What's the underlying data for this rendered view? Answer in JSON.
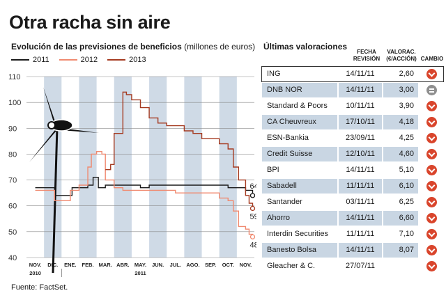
{
  "main_title": "Otra racha sin aire",
  "chart_title": "Evolución de las previsiones de beneficios",
  "chart_unit": "(millones de euros)",
  "source": "Fuente: FactSet.",
  "chart_data": {
    "type": "line",
    "title": "Evolución de las previsiones de beneficios",
    "ylabel": "(millones de euros)",
    "ylim": [
      40,
      110
    ],
    "yticks": [
      40,
      50,
      60,
      70,
      80,
      90,
      100,
      110
    ],
    "x_months": [
      "NOV.",
      "DIC.",
      "ENE.",
      "FEB.",
      "MAR.",
      "ABR.",
      "MAY.",
      "JUN.",
      "JUL.",
      "AGO.",
      "SEP.",
      "OCT.",
      "NOV."
    ],
    "x_years": [
      {
        "label": "2010",
        "month_index": 0
      },
      {
        "label": "2011",
        "month_index": 6
      }
    ],
    "grid": "alternating vertical bands per month",
    "legend_position": "top-left",
    "series": [
      {
        "name": "2011",
        "color": "#1a1a1a",
        "x": [
          0,
          1.0,
          1.1,
          2.0,
          2.1,
          3.0,
          3.3,
          3.5,
          3.6,
          4.0,
          4.5,
          5.0,
          5.5,
          6.0,
          6.5,
          7.0,
          7.5,
          8.0,
          8.5,
          9.0,
          9.5,
          10.0,
          10.5,
          11.0,
          11.5,
          12.0,
          12.2,
          12.4
        ],
        "values": [
          67,
          67,
          64,
          64,
          67,
          68,
          71,
          71,
          67,
          68,
          68,
          68,
          68,
          67,
          68,
          68,
          68,
          68,
          68,
          68,
          68,
          68,
          68,
          67,
          67,
          66,
          66,
          64
        ],
        "end_label": "64"
      },
      {
        "name": "2012",
        "color": "#f08a70",
        "x": [
          0,
          1.0,
          1.1,
          1.5,
          2.0,
          2.5,
          3.0,
          3.2,
          3.5,
          3.8,
          4.0,
          4.5,
          5.0,
          6.0,
          7.0,
          8.0,
          8.5,
          9.0,
          9.5,
          10.0,
          10.5,
          11.0,
          11.3,
          11.6,
          12.0,
          12.2,
          12.4
        ],
        "values": [
          66,
          66,
          62,
          62,
          66,
          68,
          75,
          80,
          81,
          80,
          70,
          67,
          66,
          66,
          66,
          65,
          65,
          65,
          65,
          65,
          63,
          62,
          58,
          52,
          51,
          49,
          48
        ],
        "end_label": "48"
      },
      {
        "name": "2013",
        "color": "#a53a20",
        "x": [
          4.0,
          4.3,
          4.5,
          5.0,
          5.2,
          5.5,
          6.0,
          6.5,
          7.0,
          7.5,
          8.0,
          8.5,
          9.0,
          9.5,
          10.0,
          10.5,
          11.0,
          11.3,
          11.6,
          12.0,
          12.2,
          12.4
        ],
        "values": [
          74,
          76,
          88,
          104,
          103,
          101,
          98,
          94,
          92,
          91,
          91,
          89,
          88,
          86,
          86,
          84,
          82,
          75,
          70,
          64,
          61,
          59
        ],
        "end_label": "59"
      }
    ]
  },
  "table": {
    "title": "Últimas valoraciones",
    "headers": {
      "date": "FECHA REVISIÓN",
      "value": "VALORAC. (€/ACCIÓN)",
      "change": "CAMBIO"
    },
    "rows": [
      {
        "name": "ING",
        "date": "14/11/11",
        "value": "2,60",
        "change": "down"
      },
      {
        "name": "DNB NOR",
        "date": "14/11/11",
        "value": "3,00",
        "change": "equal"
      },
      {
        "name": "Standard & Poors",
        "date": "10/11/11",
        "value": "3,90",
        "change": "down"
      },
      {
        "name": "CA Cheuvreux",
        "date": "17/10/11",
        "value": "4,18",
        "change": "down"
      },
      {
        "name": "ESN-Bankia",
        "date": "23/09/11",
        "value": "4,25",
        "change": "down"
      },
      {
        "name": "Credit Suisse",
        "date": "12/10/11",
        "value": "4,60",
        "change": "down"
      },
      {
        "name": "BPI",
        "date": "14/11/11",
        "value": "5,10",
        "change": "down"
      },
      {
        "name": "Sabadell",
        "date": "11/11/11",
        "value": "6,10",
        "change": "down"
      },
      {
        "name": "Santander",
        "date": "03/11/11",
        "value": "6,25",
        "change": "down"
      },
      {
        "name": "Ahorro",
        "date": "14/11/11",
        "value": "6,60",
        "change": "down"
      },
      {
        "name": "Interdin Securities",
        "date": "11/11/11",
        "value": "7,10",
        "change": "down"
      },
      {
        "name": "Banesto Bolsa",
        "date": "14/11/11",
        "value": "8,07",
        "change": "down"
      },
      {
        "name": "Gleacher & C.",
        "date": "27/07/11",
        "value": "",
        "change": "down"
      }
    ]
  }
}
